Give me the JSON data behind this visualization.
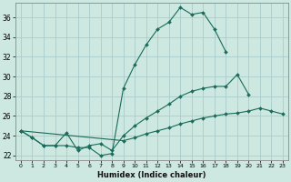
{
  "title": "",
  "xlabel": "Humidex (Indice chaleur)",
  "ylabel": "",
  "background_color": "#cce8e0",
  "grid_color": "#aacccc",
  "line_color": "#1a6b5a",
  "xlim": [
    -0.5,
    23.5
  ],
  "ylim": [
    21.5,
    37.5
  ],
  "yticks": [
    22,
    24,
    26,
    28,
    30,
    32,
    34,
    36
  ],
  "xticks": [
    0,
    1,
    2,
    3,
    4,
    5,
    6,
    7,
    8,
    9,
    10,
    11,
    12,
    13,
    14,
    15,
    16,
    17,
    18,
    19,
    20,
    21,
    22,
    23
  ],
  "series": [
    {
      "x": [
        0,
        1,
        2,
        3,
        4,
        5,
        6,
        7,
        8,
        9,
        10,
        11,
        12,
        13,
        14,
        15,
        16,
        17,
        18
      ],
      "y": [
        24.5,
        23.8,
        23.0,
        23.0,
        23.0,
        22.8,
        22.8,
        22.0,
        22.2,
        28.8,
        31.2,
        33.2,
        34.8,
        35.5,
        37.0,
        36.3,
        36.5,
        34.8,
        32.5
      ]
    },
    {
      "x": [
        0,
        1,
        2,
        3,
        4,
        5,
        6,
        7,
        8,
        9,
        10,
        11,
        12,
        13,
        14,
        15,
        16,
        17,
        18,
        19,
        20
      ],
      "y": [
        24.5,
        23.8,
        23.0,
        23.0,
        24.3,
        22.5,
        23.0,
        23.2,
        22.5,
        24.0,
        25.0,
        25.8,
        26.5,
        27.2,
        28.0,
        28.5,
        28.8,
        29.0,
        29.0,
        30.2,
        28.2
      ]
    },
    {
      "x": [
        0,
        9,
        10,
        11,
        12,
        13,
        14,
        15,
        16,
        17,
        18,
        19,
        20,
        21,
        22,
        23
      ],
      "y": [
        24.5,
        23.5,
        23.8,
        24.2,
        24.5,
        24.8,
        25.2,
        25.5,
        25.8,
        26.0,
        26.2,
        26.3,
        26.5,
        26.8,
        26.5,
        26.2
      ]
    }
  ]
}
